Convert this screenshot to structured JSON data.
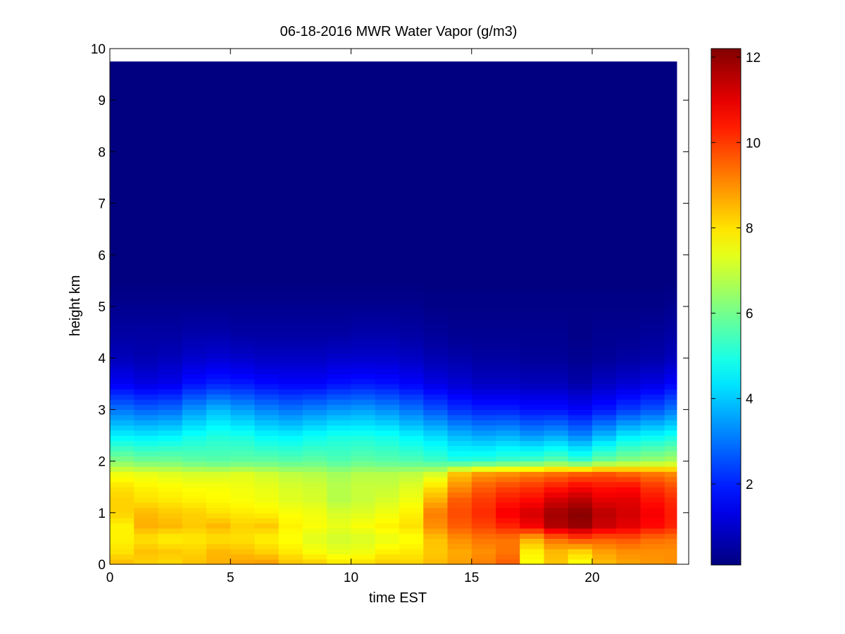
{
  "chart_data": {
    "type": "heatmap",
    "title": "06-18-2016 MWR Water Vapor (g/m3)",
    "xlabel": "time EST",
    "ylabel": "height km",
    "xlim": [
      0,
      24
    ],
    "ylim": [
      0,
      10
    ],
    "x_ticks": [
      "0",
      "5",
      "10",
      "15",
      "20"
    ],
    "y_ticks": [
      "0",
      "1",
      "2",
      "3",
      "4",
      "5",
      "6",
      "7",
      "8",
      "9",
      "10"
    ],
    "colormap": "jet",
    "color_range": [
      0.1,
      12.2
    ],
    "colorbar_ticks": [
      "2",
      "4",
      "6",
      "8",
      "10",
      "12"
    ],
    "grid": false,
    "x": [
      0.5,
      1.5,
      2.5,
      3.5,
      4.5,
      5.5,
      6.5,
      7.5,
      8.5,
      9.5,
      10.5,
      11.5,
      12.5,
      13.5,
      14.5,
      15.5,
      16.5,
      17.5,
      18.5,
      19.5,
      20.5,
      21.5,
      22.5,
      23.5
    ],
    "height_profile_km": [
      0,
      0.25,
      0.5,
      0.75,
      1.0,
      1.25,
      1.5,
      1.75,
      2.0,
      2.5,
      3.0,
      3.5,
      4.0,
      4.5,
      5.0,
      5.5,
      6.0,
      9.75
    ],
    "values": [
      [
        8.5,
        8.0,
        7.8,
        7.8,
        8.2,
        8.2,
        8.0,
        7.5,
        6.2,
        4.5,
        3.0,
        1.5,
        0.8,
        0.5,
        0.3,
        0.1,
        0.1,
        0.1
      ],
      [
        8.2,
        8.4,
        8.0,
        8.6,
        8.5,
        8.0,
        7.8,
        7.4,
        6.0,
        4.4,
        2.8,
        1.3,
        0.7,
        0.5,
        0.3,
        0.1,
        0.1,
        0.1
      ],
      [
        8.1,
        8.3,
        7.8,
        8.5,
        8.3,
        7.9,
        7.7,
        7.3,
        6.0,
        4.5,
        2.9,
        1.4,
        0.8,
        0.5,
        0.3,
        0.1,
        0.1,
        0.1
      ],
      [
        8.4,
        8.2,
        7.9,
        8.3,
        8.2,
        7.8,
        7.6,
        7.2,
        5.8,
        4.8,
        3.4,
        1.8,
        1.0,
        0.6,
        0.3,
        0.1,
        0.1,
        0.1
      ],
      [
        8.6,
        8.5,
        8.0,
        8.5,
        8.0,
        7.7,
        7.6,
        7.2,
        5.7,
        5.0,
        3.8,
        2.0,
        1.1,
        0.6,
        0.3,
        0.1,
        0.1,
        0.1
      ],
      [
        8.8,
        8.4,
        8.0,
        8.2,
        7.9,
        7.6,
        7.5,
        7.3,
        5.8,
        4.9,
        3.5,
        1.9,
        1.0,
        0.5,
        0.3,
        0.1,
        0.1,
        0.1
      ],
      [
        8.9,
        8.2,
        7.8,
        8.3,
        7.8,
        7.5,
        7.4,
        7.1,
        5.8,
        4.6,
        3.2,
        1.7,
        0.9,
        0.5,
        0.3,
        0.1,
        0.1,
        0.1
      ],
      [
        8.4,
        7.9,
        7.6,
        7.8,
        7.6,
        7.3,
        7.2,
        6.9,
        5.7,
        4.5,
        3.0,
        1.6,
        0.9,
        0.5,
        0.3,
        0.1,
        0.1,
        0.1
      ],
      [
        8.3,
        7.6,
        7.3,
        7.6,
        7.5,
        7.2,
        7.1,
        6.8,
        5.8,
        4.7,
        3.2,
        1.6,
        0.9,
        0.5,
        0.3,
        0.1,
        0.1,
        0.1
      ],
      [
        8.0,
        7.4,
        7.1,
        7.4,
        7.2,
        6.8,
        6.8,
        6.6,
        5.6,
        4.9,
        3.4,
        1.8,
        1.0,
        0.5,
        0.3,
        0.1,
        0.1,
        0.1
      ],
      [
        8.1,
        7.5,
        7.2,
        7.6,
        7.3,
        7.0,
        7.0,
        6.8,
        5.8,
        4.9,
        3.5,
        1.9,
        1.0,
        0.6,
        0.3,
        0.1,
        0.1,
        0.1
      ],
      [
        8.3,
        7.8,
        7.4,
        7.8,
        7.5,
        7.2,
        7.0,
        6.8,
        5.7,
        4.8,
        3.3,
        1.8,
        1.0,
        0.6,
        0.3,
        0.1,
        0.1,
        0.1
      ],
      [
        8.2,
        7.9,
        7.6,
        8.0,
        7.8,
        7.5,
        7.3,
        6.9,
        5.6,
        4.5,
        3.0,
        1.6,
        0.9,
        0.5,
        0.3,
        0.1,
        0.1,
        0.1
      ],
      [
        8.5,
        8.3,
        8.4,
        9.0,
        9.2,
        8.6,
        8.0,
        7.2,
        5.4,
        4.2,
        2.6,
        1.3,
        0.7,
        0.4,
        0.2,
        0.1,
        0.1,
        0.1
      ],
      [
        8.8,
        8.7,
        9.0,
        9.6,
        9.8,
        9.6,
        9.0,
        8.4,
        5.1,
        3.8,
        2.2,
        1.1,
        0.6,
        0.3,
        0.2,
        0.1,
        0.1,
        0.1
      ],
      [
        9.2,
        9.0,
        9.3,
        9.9,
        10.2,
        10.0,
        9.6,
        8.9,
        5.2,
        3.6,
        2.0,
        0.9,
        0.5,
        0.3,
        0.2,
        0.1,
        0.1,
        0.1
      ],
      [
        9.6,
        9.3,
        9.3,
        10.3,
        10.8,
        10.4,
        9.9,
        9.0,
        5.4,
        3.7,
        2.0,
        0.9,
        0.5,
        0.3,
        0.2,
        0.1,
        0.1,
        0.1
      ],
      [
        7.6,
        7.8,
        8.6,
        10.8,
        11.2,
        10.6,
        10.1,
        9.2,
        5.5,
        3.4,
        1.8,
        0.8,
        0.4,
        0.3,
        0.2,
        0.1,
        0.1,
        0.1
      ],
      [
        8.3,
        8.5,
        9.4,
        11.6,
        11.8,
        11.2,
        10.4,
        9.4,
        5.8,
        3.6,
        1.8,
        0.8,
        0.4,
        0.3,
        0.2,
        0.1,
        0.1,
        0.1
      ],
      [
        7.5,
        8.2,
        9.8,
        11.9,
        12.1,
        11.5,
        10.7,
        9.6,
        5.4,
        3.2,
        1.6,
        0.6,
        0.3,
        0.2,
        0.2,
        0.1,
        0.1,
        0.1
      ],
      [
        8.4,
        8.8,
        9.6,
        11.3,
        11.5,
        11.0,
        10.5,
        9.7,
        6.0,
        3.8,
        1.9,
        0.9,
        0.4,
        0.3,
        0.2,
        0.1,
        0.1,
        0.1
      ],
      [
        8.7,
        9.0,
        9.7,
        11.0,
        11.2,
        11.0,
        10.6,
        9.5,
        6.3,
        4.4,
        2.3,
        1.1,
        0.5,
        0.3,
        0.2,
        0.1,
        0.1,
        0.1
      ],
      [
        8.9,
        9.0,
        9.4,
        10.6,
        10.8,
        10.5,
        10.1,
        9.3,
        6.5,
        4.6,
        2.6,
        1.3,
        0.6,
        0.4,
        0.2,
        0.1,
        0.1,
        0.1
      ],
      [
        9.0,
        9.0,
        9.3,
        10.3,
        10.4,
        10.2,
        9.8,
        9.1,
        6.7,
        4.8,
        3.0,
        1.6,
        0.8,
        0.5,
        0.3,
        0.1,
        0.1,
        0.1
      ]
    ]
  }
}
